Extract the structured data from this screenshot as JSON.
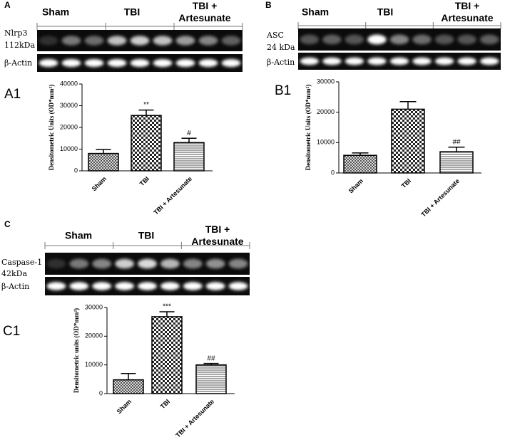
{
  "chart_data": [
    {
      "type": "bar",
      "panel": "A",
      "chart_label": "A1",
      "blot": {
        "groups": [
          [
            "Sham"
          ],
          [
            "TBI"
          ],
          [
            "TBI +",
            "Artesunate"
          ]
        ],
        "protein_label": [
          "Nlrp3",
          "112kDa"
        ],
        "control_label": "β-Actin"
      },
      "ylabel": "Densitometric Units (OD*mm²)",
      "categories": [
        "Sham",
        "TBI",
        "TBI + Artesunate"
      ],
      "values": [
        8000,
        25500,
        13000
      ],
      "errors": [
        1800,
        2500,
        2000
      ],
      "annotations": [
        null,
        "**",
        "#"
      ],
      "ylim": [
        0,
        40000
      ],
      "yticks": [
        0,
        10000,
        20000,
        30000,
        40000
      ]
    },
    {
      "type": "bar",
      "panel": "B",
      "chart_label": "B1",
      "blot": {
        "groups": [
          [
            "Sham"
          ],
          [
            "TBI"
          ],
          [
            "TBI +",
            "Artesunate"
          ]
        ],
        "protein_label": [
          "ASC",
          "24 kDa"
        ],
        "control_label": "β-Actin"
      },
      "ylabel": "Densitometric Units (OD*mm²)",
      "categories": [
        "Sham",
        "TBI",
        "TBI + Artesunate"
      ],
      "values": [
        5800,
        21000,
        7000
      ],
      "errors": [
        800,
        2500,
        1500
      ],
      "annotations": [
        null,
        null,
        "##"
      ],
      "ylim": [
        0,
        30000
      ],
      "yticks": [
        0,
        10000,
        20000,
        30000
      ]
    },
    {
      "type": "bar",
      "panel": "C",
      "chart_label": "C1",
      "blot": {
        "groups": [
          [
            "Sham"
          ],
          [
            "TBI"
          ],
          [
            "TBI +",
            "Artesunate"
          ]
        ],
        "protein_label": [
          "Caspase-1",
          "42kDa"
        ],
        "control_label": "β-Actin"
      },
      "ylabel": "Densitometric units (OD*mm²)",
      "categories": [
        "Sham",
        "TBI",
        "TBI + Artesunate"
      ],
      "values": [
        4800,
        26800,
        10000
      ],
      "errors": [
        2200,
        1700,
        500
      ],
      "annotations": [
        null,
        "***",
        "##"
      ],
      "ylim": [
        0,
        30000
      ],
      "yticks": [
        0,
        10000,
        20000,
        30000
      ]
    }
  ]
}
